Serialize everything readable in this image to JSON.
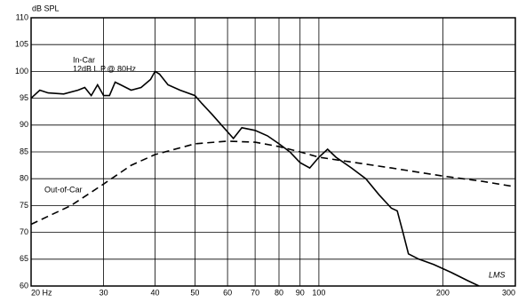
{
  "chart_data": {
    "type": "line",
    "y_label": "dB SPL",
    "xscale": "log",
    "grid": true,
    "xlim": [
      20,
      300
    ],
    "ylim": [
      60,
      110
    ],
    "xticks": [
      {
        "value": 20,
        "label": "20 Hz"
      },
      30,
      40,
      50,
      60,
      70,
      80,
      90,
      100,
      200,
      300
    ],
    "yticks": [
      60,
      65,
      70,
      75,
      80,
      85,
      90,
      95,
      100,
      105,
      110
    ],
    "annotations": [
      "12dB L.P.@ 80Hz",
      "LMS"
    ],
    "series": [
      {
        "name": "In-Car",
        "color": "#000000",
        "dash": false,
        "x": [
          20,
          21,
          22,
          24,
          26,
          27,
          28,
          29,
          30,
          31,
          32,
          33,
          35,
          37,
          39,
          40,
          41,
          43,
          46,
          50,
          52,
          55,
          58,
          62,
          65,
          70,
          75,
          80,
          85,
          90,
          95,
          100,
          105,
          110,
          120,
          130,
          140,
          150,
          155,
          160,
          165,
          175,
          190,
          210,
          230,
          245
        ],
        "values": [
          95,
          96.5,
          96,
          95.8,
          96.5,
          97,
          95.5,
          97.5,
          95.5,
          95.5,
          98,
          97.5,
          96.5,
          97,
          98.5,
          100,
          99.5,
          97.5,
          96.5,
          95.5,
          94,
          92,
          90,
          87.5,
          89.5,
          89,
          88,
          86.5,
          85,
          83,
          82,
          84,
          85.5,
          84,
          82,
          80,
          77,
          74.5,
          74,
          70,
          66,
          65,
          64,
          62.5,
          61,
          60
        ]
      },
      {
        "name": "Out-of-Car",
        "color": "#000000",
        "dash": true,
        "x": [
          20,
          25,
          30,
          35,
          40,
          50,
          60,
          70,
          80,
          90,
          100,
          150,
          200,
          250,
          300
        ],
        "values": [
          71.5,
          75,
          79,
          82.5,
          84.5,
          86.5,
          87,
          86.8,
          86,
          85,
          84,
          82,
          80.5,
          79.5,
          78.5
        ]
      }
    ]
  }
}
